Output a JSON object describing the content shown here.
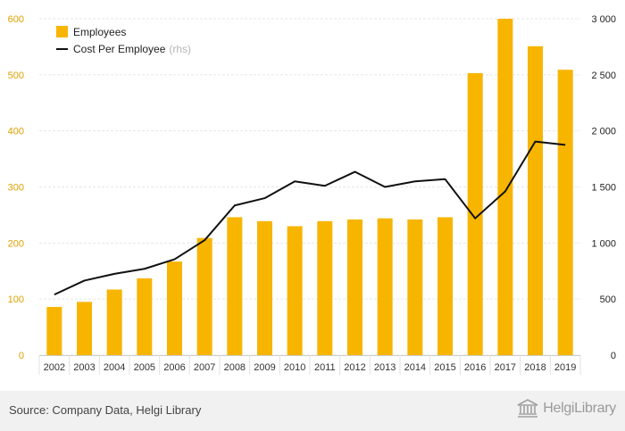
{
  "chart_data": {
    "type": "bar",
    "categories": [
      "2002",
      "2003",
      "2004",
      "2005",
      "2006",
      "2007",
      "2008",
      "2009",
      "2010",
      "2011",
      "2012",
      "2013",
      "2014",
      "2015",
      "2016",
      "2017",
      "2018",
      "2019"
    ],
    "series": [
      {
        "name": "Employees",
        "type": "bar",
        "axis": "left",
        "color": "#f7b500",
        "values": [
          86,
          95,
          117,
          137,
          167,
          209,
          246,
          239,
          230,
          239,
          242,
          244,
          242,
          246,
          503,
          600,
          551,
          509
        ]
      },
      {
        "name": "Cost Per Employee",
        "legend_suffix": "(rhs)",
        "type": "line",
        "axis": "right",
        "color": "#111111",
        "values": [
          540,
          665,
          725,
          770,
          855,
          1025,
          1335,
          1400,
          1550,
          1510,
          1635,
          1500,
          1550,
          1570,
          1220,
          1460,
          1905,
          1875
        ]
      }
    ],
    "y_left": {
      "ylim": [
        0,
        600
      ],
      "ticks": [
        "0",
        "100",
        "200",
        "300",
        "400",
        "500",
        "600"
      ],
      "tick_color": "#e0a100"
    },
    "y_right": {
      "ylim": [
        0,
        3000
      ],
      "ticks": [
        "0",
        "500",
        "1 000",
        "1 500",
        "2 000",
        "2 500",
        "3 000"
      ]
    },
    "grid": true,
    "legend_position": "top-left"
  },
  "footer": {
    "source": "Source: Company Data, Helgi Library",
    "logo_text": "HelgiLibrary",
    "logo_icon": "library-building-icon"
  }
}
